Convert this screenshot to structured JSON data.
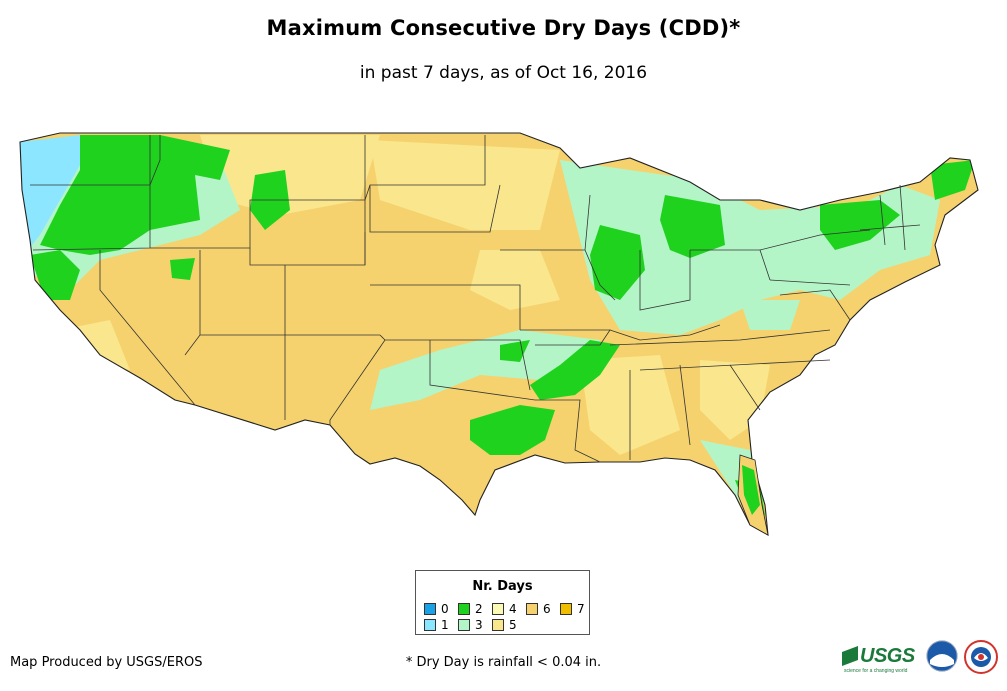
{
  "header": {
    "title": "Maximum Consecutive Dry Days (CDD)*",
    "subtitle": "in past 7 days, as of Oct 16, 2016"
  },
  "legend": {
    "title": "Nr. Days",
    "items": [
      {
        "label": "0",
        "color": "#1ba2e6"
      },
      {
        "label": "1",
        "color": "#8ce6ff"
      },
      {
        "label": "2",
        "color": "#1ed21e"
      },
      {
        "label": "3",
        "color": "#b4f5c8"
      },
      {
        "label": "4",
        "color": "#fafab4"
      },
      {
        "label": "5",
        "color": "#fae68c"
      },
      {
        "label": "6",
        "color": "#f5d26e"
      },
      {
        "label": "7",
        "color": "#f0be00"
      }
    ]
  },
  "footer": {
    "credit": "Map Produced by USGS/EROS",
    "footnote": "* Dry Day is rainfall < 0.04 in."
  },
  "logos": {
    "usgs_text": "USGS",
    "usgs_tagline": "science for a changing world",
    "noaa_icon": "noaa-logo-icon",
    "nws_icon": "national-weather-service-logo-icon"
  }
}
